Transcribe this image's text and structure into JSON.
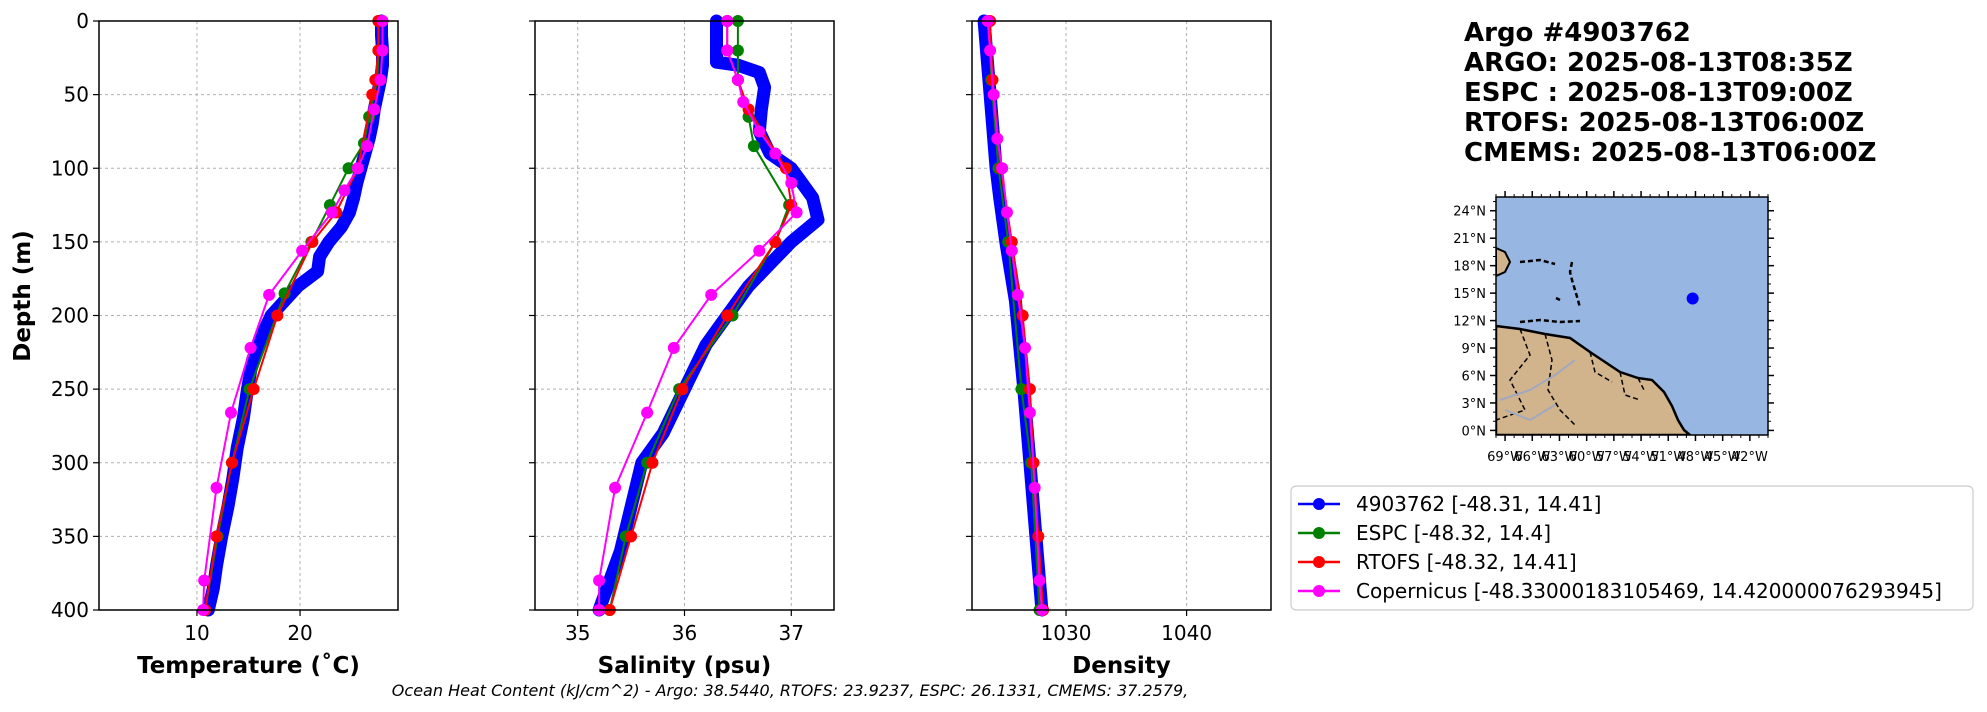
{
  "chart_data": [
    {
      "type": "line",
      "id": "temperature",
      "xlabel": "Temperature (˚C)",
      "ylabel": "Depth (m)",
      "xlim": [
        0.5,
        29.5
      ],
      "ylim": [
        400,
        0
      ],
      "xticks": [
        10,
        20
      ],
      "yticks": [
        0,
        50,
        100,
        150,
        200,
        250,
        300,
        350,
        400
      ],
      "grid": true,
      "series": [
        {
          "name": "4903762",
          "color": "#0000ff",
          "style": "thick",
          "points": [
            [
              27.9,
              0
            ],
            [
              27.9,
              10
            ],
            [
              28.0,
              20
            ],
            [
              28.0,
              30
            ],
            [
              27.8,
              40
            ],
            [
              27.5,
              50
            ],
            [
              27.2,
              60
            ],
            [
              27.0,
              70
            ],
            [
              26.7,
              80
            ],
            [
              26.3,
              90
            ],
            [
              25.9,
              100
            ],
            [
              25.5,
              110
            ],
            [
              25.2,
              120
            ],
            [
              24.8,
              130
            ],
            [
              24.0,
              140
            ],
            [
              22.8,
              150
            ],
            [
              21.9,
              160
            ],
            [
              21.7,
              170
            ],
            [
              19.8,
              180
            ],
            [
              18.5,
              190
            ],
            [
              17.2,
              200
            ],
            [
              16.2,
              215
            ],
            [
              15.4,
              230
            ],
            [
              14.9,
              250
            ],
            [
              14.5,
              270
            ],
            [
              13.9,
              290
            ],
            [
              13.5,
              310
            ],
            [
              13.0,
              330
            ],
            [
              12.4,
              350
            ],
            [
              11.9,
              370
            ],
            [
              11.6,
              385
            ],
            [
              11.1,
              400
            ]
          ]
        },
        {
          "name": "ESPC",
          "color": "#008000",
          "style": "thin",
          "points": [
            [
              27.6,
              0
            ],
            [
              27.6,
              20
            ],
            [
              27.5,
              40
            ],
            [
              26.7,
              65
            ],
            [
              26.2,
              83
            ],
            [
              24.7,
              100
            ],
            [
              22.9,
              125
            ],
            [
              21.1,
              150
            ],
            [
              18.5,
              185
            ],
            [
              15.1,
              250
            ],
            [
              13.4,
              300
            ],
            [
              12.0,
              350
            ],
            [
              10.8,
              400
            ]
          ]
        },
        {
          "name": "RTOFS",
          "color": "#ff0000",
          "style": "thin",
          "points": [
            [
              27.6,
              0
            ],
            [
              27.6,
              20
            ],
            [
              27.3,
              40
            ],
            [
              27.0,
              50
            ],
            [
              25.6,
              100
            ],
            [
              23.5,
              130
            ],
            [
              21.2,
              150
            ],
            [
              17.8,
              200
            ],
            [
              15.5,
              250
            ],
            [
              13.4,
              300
            ],
            [
              11.9,
              350
            ],
            [
              10.8,
              400
            ]
          ]
        },
        {
          "name": "Copernicus",
          "color": "#ff00ff",
          "style": "thin",
          "points": [
            [
              28.0,
              0
            ],
            [
              28.0,
              20
            ],
            [
              27.8,
              40
            ],
            [
              27.2,
              60
            ],
            [
              26.5,
              85
            ],
            [
              25.6,
              100
            ],
            [
              24.3,
              115
            ],
            [
              23.1,
              130
            ],
            [
              20.2,
              156
            ],
            [
              17.0,
              186
            ],
            [
              15.2,
              222
            ],
            [
              13.3,
              266
            ],
            [
              11.9,
              317
            ],
            [
              10.7,
              380
            ],
            [
              10.6,
              400
            ]
          ]
        }
      ]
    },
    {
      "type": "line",
      "id": "salinity",
      "xlabel": "Salinity (psu)",
      "xlim": [
        34.6,
        37.4
      ],
      "ylim": [
        400,
        0
      ],
      "xticks": [
        35,
        36,
        37
      ],
      "yticks": [
        0,
        50,
        100,
        150,
        200,
        250,
        300,
        350,
        400
      ],
      "grid": true,
      "series": [
        {
          "name": "4903762",
          "color": "#0000ff",
          "style": "thick",
          "points": [
            [
              36.3,
              0
            ],
            [
              36.3,
              15
            ],
            [
              36.3,
              28
            ],
            [
              36.5,
              30
            ],
            [
              36.7,
              35
            ],
            [
              36.75,
              45
            ],
            [
              36.72,
              60
            ],
            [
              36.7,
              75
            ],
            [
              36.8,
              90
            ],
            [
              37.0,
              100
            ],
            [
              37.1,
              110
            ],
            [
              37.2,
              120
            ],
            [
              37.25,
              135
            ],
            [
              37.0,
              150
            ],
            [
              36.8,
              165
            ],
            [
              36.6,
              180
            ],
            [
              36.4,
              200
            ],
            [
              36.2,
              220
            ],
            [
              36.0,
              250
            ],
            [
              35.8,
              280
            ],
            [
              35.6,
              300
            ],
            [
              35.5,
              330
            ],
            [
              35.4,
              360
            ],
            [
              35.3,
              380
            ],
            [
              35.2,
              400
            ]
          ]
        },
        {
          "name": "ESPC",
          "color": "#008000",
          "style": "thin",
          "points": [
            [
              36.5,
              0
            ],
            [
              36.5,
              20
            ],
            [
              36.5,
              40
            ],
            [
              36.6,
              65
            ],
            [
              36.65,
              85
            ],
            [
              36.98,
              125
            ],
            [
              36.85,
              150
            ],
            [
              36.45,
              200
            ],
            [
              35.95,
              250
            ],
            [
              35.65,
              300
            ],
            [
              35.45,
              350
            ],
            [
              35.3,
              400
            ]
          ]
        },
        {
          "name": "RTOFS",
          "color": "#ff0000",
          "style": "thin",
          "points": [
            [
              36.4,
              0
            ],
            [
              36.4,
              20
            ],
            [
              36.5,
              40
            ],
            [
              36.6,
              60
            ],
            [
              36.95,
              100
            ],
            [
              37.0,
              125
            ],
            [
              36.85,
              150
            ],
            [
              36.4,
              200
            ],
            [
              35.98,
              250
            ],
            [
              35.7,
              300
            ],
            [
              35.5,
              350
            ],
            [
              35.3,
              400
            ]
          ]
        },
        {
          "name": "Copernicus",
          "color": "#ff00ff",
          "style": "thin",
          "points": [
            [
              36.4,
              0
            ],
            [
              36.4,
              20
            ],
            [
              36.5,
              40
            ],
            [
              36.55,
              55
            ],
            [
              36.7,
              75
            ],
            [
              36.85,
              90
            ],
            [
              37.0,
              110
            ],
            [
              37.05,
              130
            ],
            [
              36.7,
              156
            ],
            [
              36.25,
              186
            ],
            [
              35.9,
              222
            ],
            [
              35.65,
              266
            ],
            [
              35.35,
              317
            ],
            [
              35.2,
              380
            ],
            [
              35.2,
              400
            ]
          ]
        }
      ]
    },
    {
      "type": "line",
      "id": "density",
      "xlabel": "Density",
      "xlim": [
        1022.2,
        1047.0
      ],
      "ylim": [
        400,
        0
      ],
      "xticks": [
        1030,
        1040
      ],
      "yticks": [
        0,
        50,
        100,
        150,
        200,
        250,
        300,
        350,
        400
      ],
      "grid": true,
      "series": [
        {
          "name": "4903762",
          "color": "#0000ff",
          "style": "thick",
          "points": [
            [
              1023.2,
              0
            ],
            [
              1023.4,
              20
            ],
            [
              1023.6,
              40
            ],
            [
              1023.8,
              60
            ],
            [
              1024.0,
              80
            ],
            [
              1024.2,
              100
            ],
            [
              1024.5,
              120
            ],
            [
              1025.0,
              150
            ],
            [
              1025.8,
              190
            ],
            [
              1026.5,
              250
            ],
            [
              1027.0,
              300
            ],
            [
              1027.5,
              350
            ],
            [
              1028.0,
              400
            ]
          ]
        },
        {
          "name": "ESPC",
          "color": "#008000",
          "style": "thin",
          "points": [
            [
              1023.6,
              0
            ],
            [
              1023.8,
              40
            ],
            [
              1024.4,
              100
            ],
            [
              1025.2,
              150
            ],
            [
              1026.3,
              250
            ],
            [
              1027.1,
              300
            ],
            [
              1027.8,
              400
            ]
          ]
        },
        {
          "name": "RTOFS",
          "color": "#ff0000",
          "style": "thin",
          "points": [
            [
              1023.7,
              0
            ],
            [
              1023.9,
              40
            ],
            [
              1024.6,
              100
            ],
            [
              1025.5,
              150
            ],
            [
              1026.4,
              200
            ],
            [
              1027.0,
              250
            ],
            [
              1027.3,
              300
            ],
            [
              1027.7,
              350
            ],
            [
              1028.1,
              400
            ]
          ]
        },
        {
          "name": "Copernicus",
          "color": "#ff00ff",
          "style": "thin",
          "points": [
            [
              1023.5,
              0
            ],
            [
              1023.7,
              20
            ],
            [
              1024.0,
              50
            ],
            [
              1024.3,
              80
            ],
            [
              1024.7,
              100
            ],
            [
              1025.1,
              130
            ],
            [
              1025.5,
              156
            ],
            [
              1026.0,
              186
            ],
            [
              1026.6,
              222
            ],
            [
              1027.0,
              266
            ],
            [
              1027.4,
              317
            ],
            [
              1027.8,
              380
            ],
            [
              1028.0,
              400
            ]
          ]
        }
      ]
    }
  ],
  "title_lines": [
    "Argo #4903762",
    "ARGO: 2025-08-13T08:35Z",
    "ESPC : 2025-08-13T09:00Z",
    "RTOFS: 2025-08-13T06:00Z",
    "CMEMS: 2025-08-13T06:00Z"
  ],
  "map": {
    "lon_ticks": [
      "69°W",
      "66°W",
      "63°W",
      "60°W",
      "57°W",
      "54°W",
      "51°W",
      "48°W",
      "45°W",
      "42°W"
    ],
    "lat_ticks": [
      "24°N",
      "21°N",
      "18°N",
      "15°N",
      "12°N",
      "9°N",
      "6°N",
      "3°N",
      "0°N"
    ],
    "lon_values": [
      -69,
      -66,
      -63,
      -60,
      -57,
      -54,
      -51,
      -48,
      -45,
      -42
    ],
    "lat_values": [
      24,
      21,
      18,
      15,
      12,
      9,
      6,
      3,
      0
    ],
    "lon_range": [
      -70,
      -40
    ],
    "lat_range": [
      -0.5,
      25.5
    ],
    "float_position": [
      -48.31,
      14.41
    ],
    "ocean_color": "#97b6e1",
    "land_color": "#d2b48c",
    "marker_color": "#0000ff"
  },
  "legend": [
    {
      "label": "4903762 [-48.31, 14.41]",
      "color": "#0000ff"
    },
    {
      "label": "ESPC [-48.32, 14.4]",
      "color": "#008000"
    },
    {
      "label": "RTOFS [-48.32, 14.41]",
      "color": "#ff0000"
    },
    {
      "label": "Copernicus [-48.33000183105469, 14.420000076293945]",
      "color": "#ff00ff"
    }
  ],
  "caption": "Ocean Heat Content (kJ/cm^2) - Argo: 38.5440,  RTOFS: 23.9237,  ESPC: 26.1331,  CMEMS: 37.2579,"
}
